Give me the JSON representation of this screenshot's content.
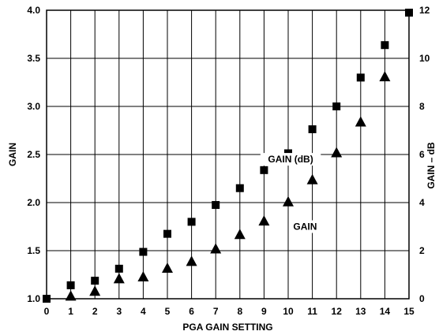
{
  "chart_data": {
    "type": "scatter",
    "title": "",
    "xlabel": "PGA GAIN SETTING",
    "ylabel": "GAIN",
    "y2label": "GAIN – dB",
    "xlim": [
      0,
      15
    ],
    "ylim": [
      1.0,
      4.0
    ],
    "y2lim": [
      0,
      12
    ],
    "x_ticks": [
      0,
      1,
      2,
      3,
      4,
      5,
      6,
      7,
      8,
      9,
      10,
      11,
      12,
      13,
      14,
      15
    ],
    "y_ticks": [
      "1.0",
      "1.5",
      "2.0",
      "2.5",
      "3.0",
      "3.5",
      "4.0"
    ],
    "y2_ticks": [
      "0",
      "2",
      "4",
      "6",
      "8",
      "10",
      "12"
    ],
    "grid": true,
    "series": [
      {
        "name": "GAIN",
        "marker": "triangle",
        "axis": "left",
        "x": [
          1,
          2,
          3,
          4,
          5,
          6,
          7,
          8,
          9,
          10,
          11,
          12,
          13,
          14
        ],
        "values": [
          1.03,
          1.08,
          1.21,
          1.23,
          1.32,
          1.39,
          1.52,
          1.67,
          1.81,
          2.01,
          2.24,
          2.52,
          2.84,
          3.31
        ]
      },
      {
        "name": "GAIN (dB)",
        "marker": "square",
        "axis": "right",
        "x": [
          0,
          1,
          2,
          3,
          4,
          5,
          6,
          7,
          8,
          9,
          10,
          11,
          12,
          13,
          14,
          15
        ],
        "values": [
          0,
          0.56,
          0.75,
          1.25,
          1.95,
          2.7,
          3.2,
          3.9,
          4.6,
          5.35,
          6.05,
          7.05,
          8.0,
          9.2,
          10.55,
          11.9
        ]
      }
    ],
    "annotations": [
      {
        "text": "GAIN (dB)",
        "x": 10.1,
        "y": 2.45
      },
      {
        "text": "GAIN",
        "x": 10.7,
        "y": 1.75
      }
    ]
  }
}
